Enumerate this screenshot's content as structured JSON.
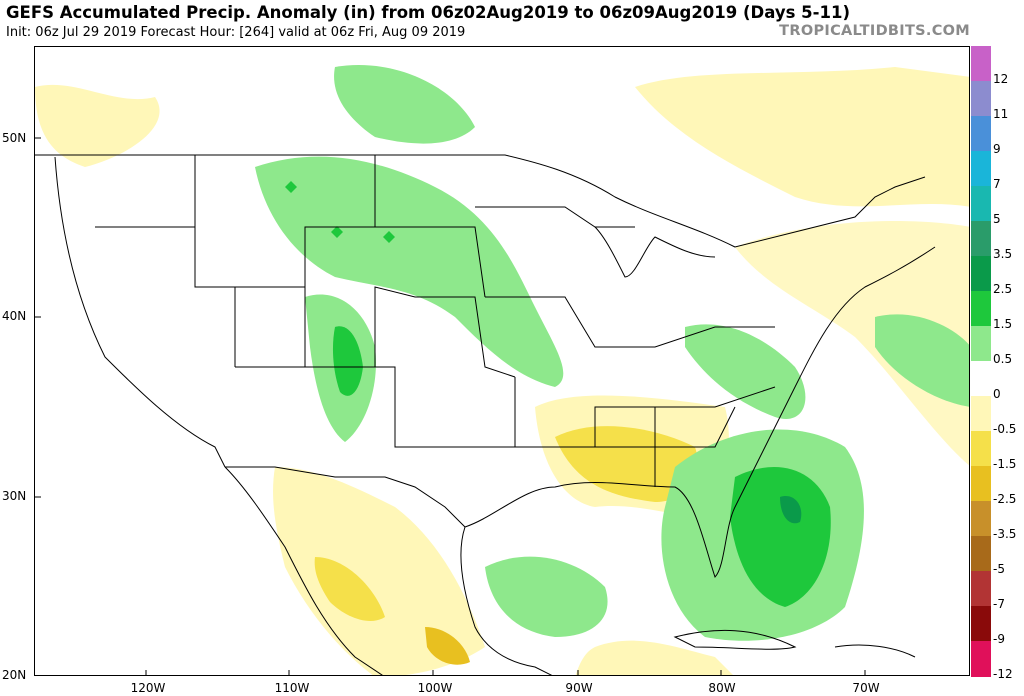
{
  "header": {
    "title": "GEFS Accumulated Precip. Anomaly (in) from 06z02Aug2019 to 06z09Aug2019 (Days 5-11)",
    "subtitle": "Init: 06z Jul 29 2019   Forecast Hour: [264]   valid at 06z Fri, Aug 09 2019",
    "brand": "TROPICALTIDBITS.COM"
  },
  "axes": {
    "lat_labels": [
      "50N",
      "40N",
      "30N",
      "20N"
    ],
    "lon_labels": [
      "120W",
      "110W",
      "100W",
      "90W",
      "80W",
      "70W"
    ]
  },
  "colorbar": {
    "labels": [
      "12",
      "11",
      "9",
      "7",
      "5",
      "3.5",
      "2.5",
      "1.5",
      "0.5",
      "0",
      "-0.5",
      "-1.5",
      "-2.5",
      "-3.5",
      "-5",
      "-7",
      "-9",
      "-12"
    ],
    "colors": [
      "#c861c8",
      "#8c8ccf",
      "#4a90d9",
      "#1ab5d9",
      "#19b8b0",
      "#2a9c6a",
      "#0a9a4a",
      "#1ec83c",
      "#8ee88c",
      "#ffffff",
      "#fff7b8",
      "#f5e04a",
      "#e8c020",
      "#c8902a",
      "#a86a1a",
      "#b23434",
      "#8a0a0a",
      "#e0105a"
    ]
  }
}
